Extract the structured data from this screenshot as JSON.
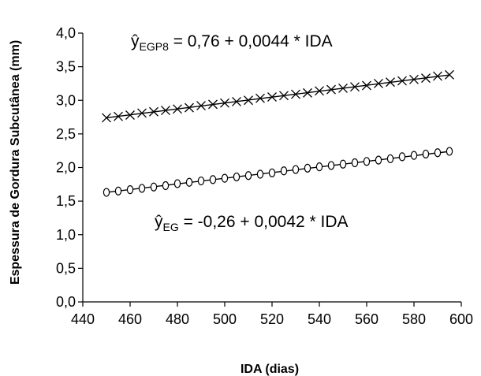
{
  "chart_data": {
    "type": "line",
    "xlabel": "IDA (dias)",
    "ylabel": "Espessura de Gordura Subcutânea (mm)",
    "xlim": [
      440,
      600
    ],
    "ylim": [
      0.0,
      4.0
    ],
    "x_ticks": [
      "440",
      "460",
      "480",
      "500",
      "520",
      "540",
      "560",
      "580",
      "600"
    ],
    "y_ticks": [
      "0,0",
      "0,5",
      "1,0",
      "1,5",
      "2,0",
      "2,5",
      "3,0",
      "3,5",
      "4,0"
    ],
    "grid": false,
    "legend": "none",
    "series": [
      {
        "marker": "x",
        "intercept": 0.76,
        "slope": 0.0044,
        "x": [
          450,
          455,
          460,
          465,
          470,
          475,
          480,
          485,
          490,
          495,
          500,
          505,
          510,
          515,
          520,
          525,
          530,
          535,
          540,
          545,
          550,
          555,
          560,
          565,
          570,
          575,
          580,
          585,
          590,
          595
        ],
        "y": [
          2.74,
          2.76,
          2.78,
          2.81,
          2.83,
          2.85,
          2.87,
          2.89,
          2.92,
          2.94,
          2.96,
          2.98,
          3.0,
          3.03,
          3.05,
          3.07,
          3.09,
          3.11,
          3.14,
          3.16,
          3.18,
          3.2,
          3.22,
          3.25,
          3.27,
          3.29,
          3.31,
          3.33,
          3.36,
          3.38
        ],
        "equation": {
          "prefix": "ŷ",
          "subscript": "EGP8",
          "rest": " = 0,76 + 0,0044 * IDA"
        }
      },
      {
        "marker": "o",
        "intercept": -0.26,
        "slope": 0.0042,
        "x": [
          450,
          455,
          460,
          465,
          470,
          475,
          480,
          485,
          490,
          495,
          500,
          505,
          510,
          515,
          520,
          525,
          530,
          535,
          540,
          545,
          550,
          555,
          560,
          565,
          570,
          575,
          580,
          585,
          590,
          595
        ],
        "y": [
          1.63,
          1.65,
          1.67,
          1.69,
          1.71,
          1.73,
          1.76,
          1.78,
          1.8,
          1.82,
          1.84,
          1.86,
          1.88,
          1.9,
          1.92,
          1.95,
          1.97,
          1.99,
          2.01,
          2.03,
          2.05,
          2.07,
          2.09,
          2.11,
          2.13,
          2.16,
          2.18,
          2.2,
          2.22,
          2.24
        ],
        "equation": {
          "prefix": "ŷ",
          "subscript": "EG",
          "rest": " = -0,26 + 0,0042 * IDA"
        }
      }
    ]
  }
}
